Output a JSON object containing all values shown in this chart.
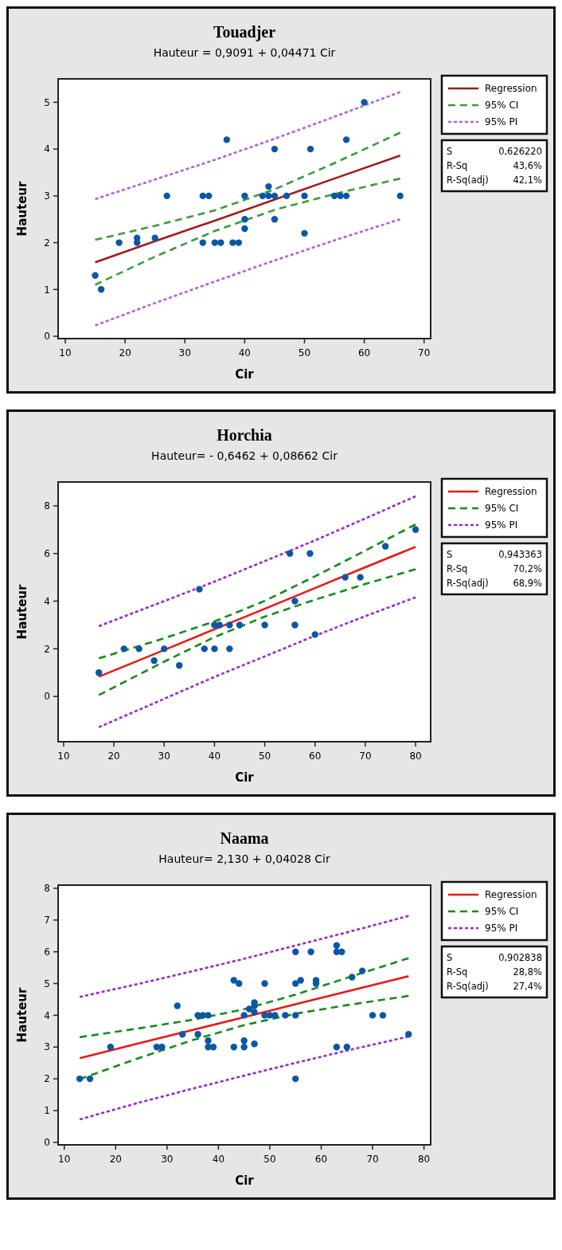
{
  "chart_data": [
    {
      "type": "scatter",
      "title": "Touadjer",
      "subtitle": "Hauteur = 0,9091 + 0,04471 Cir",
      "xlabel": "Cir",
      "ylabel": "Hauteur",
      "xlim": [
        8.8,
        71.1
      ],
      "ylim": [
        -0.05,
        5.5
      ],
      "xticks": [
        10,
        20,
        30,
        40,
        50,
        60,
        70
      ],
      "yticks": [
        0,
        1,
        2,
        3,
        4,
        5
      ],
      "grid": false,
      "legend": "right",
      "annotations": [
        "S",
        "0,626220",
        "R-Sq",
        "43,6%",
        "R-Sq(adj)",
        "42,1%"
      ],
      "series": [
        {
          "color": "#0b57a4",
          "marker": "circle",
          "x": [
            15,
            16,
            19,
            22,
            22,
            25,
            27,
            33,
            34,
            33,
            35,
            36,
            37,
            38,
            39,
            40,
            40,
            40,
            43,
            44,
            44,
            45,
            45,
            45,
            47,
            50,
            50,
            51,
            55,
            56,
            57,
            57,
            60,
            66
          ],
          "values": [
            1.3,
            1.0,
            2.0,
            2.1,
            2.0,
            2.1,
            3,
            3,
            3,
            2,
            2,
            2,
            4.2,
            2,
            2,
            3,
            2.5,
            2.3,
            3,
            3.2,
            3,
            3,
            4,
            2.5,
            3,
            3,
            2.2,
            4,
            3,
            3,
            3,
            4.2,
            5,
            3
          ]
        },
        {
          "type": "line",
          "name": "Regression",
          "color": "#a01c1c",
          "line_style": "solid",
          "x": [
            15,
            25,
            35,
            45,
            55,
            66
          ],
          "values": [
            1.58,
            2.03,
            2.47,
            2.92,
            3.37,
            3.86
          ]
        },
        {
          "type": "line",
          "name": "95% CI",
          "color": "#3c9a3c",
          "line_style": "dashed",
          "x": [
            15,
            25,
            35,
            45,
            55,
            66
          ],
          "values": [
            2.06,
            2.36,
            2.69,
            3.14,
            3.7,
            4.35
          ]
        },
        {
          "type": "line",
          "color": "#3c9a3c",
          "line_style": "dashed",
          "x": [
            15,
            25,
            35,
            45,
            55,
            66
          ],
          "values": [
            1.1,
            1.7,
            2.25,
            2.7,
            3.04,
            3.37
          ]
        },
        {
          "type": "line",
          "name": "95% PI",
          "color": "#b060d8",
          "line_style": "dotted",
          "x": [
            15,
            25,
            35,
            45,
            55,
            66
          ],
          "values": [
            2.93,
            3.35,
            3.77,
            4.22,
            4.69,
            5.22
          ]
        },
        {
          "type": "line",
          "color": "#b060d8",
          "line_style": "dotted",
          "x": [
            15,
            25,
            35,
            45,
            55,
            66
          ],
          "values": [
            0.23,
            0.71,
            1.17,
            1.62,
            2.05,
            2.5
          ]
        }
      ]
    },
    {
      "type": "scatter",
      "title": "Horchia",
      "subtitle": "Hauteur= - 0,6462 + 0,08662 Cir",
      "xlabel": "Cir",
      "ylabel": "Hauteur",
      "xlim": [
        8.9,
        83
      ],
      "ylim": [
        -1.9,
        9
      ],
      "xticks": [
        10,
        20,
        30,
        40,
        50,
        60,
        70,
        80
      ],
      "yticks": [
        0,
        2,
        4,
        6,
        8
      ],
      "grid": false,
      "legend": "right",
      "annotations": [
        "S",
        "0,943363",
        "R-Sq",
        "70,2%",
        "R-Sq(adj)",
        "68,9%"
      ],
      "series": [
        {
          "color": "#0b57a4",
          "marker": "circle",
          "x": [
            17,
            22,
            25,
            28,
            30,
            33,
            37,
            38,
            40,
            41,
            40,
            43,
            43,
            45,
            50,
            55,
            56,
            56,
            59,
            60,
            66,
            69,
            74,
            80
          ],
          "values": [
            1,
            2,
            2,
            1.5,
            2,
            1.3,
            4.5,
            2,
            3,
            3,
            2,
            3,
            2,
            3,
            3,
            6,
            4,
            3,
            6,
            2.6,
            5,
            5,
            6.3,
            7
          ]
        },
        {
          "type": "line",
          "name": "Regression",
          "color": "#e41a1a",
          "line_style": "solid",
          "x": [
            17,
            30,
            40,
            50,
            60,
            70,
            80
          ],
          "values": [
            0.83,
            1.95,
            2.82,
            3.68,
            4.55,
            5.42,
            6.28
          ]
        },
        {
          "type": "line",
          "name": "95% CI",
          "color": "#188a18",
          "line_style": "dashed",
          "x": [
            17,
            30,
            40,
            50,
            60,
            70,
            80
          ],
          "values": [
            1.6,
            2.44,
            3.15,
            4.01,
            5.04,
            6.12,
            7.22
          ]
        },
        {
          "type": "line",
          "color": "#188a18",
          "line_style": "dashed",
          "x": [
            17,
            30,
            40,
            50,
            60,
            70,
            80
          ],
          "values": [
            0.06,
            1.46,
            2.49,
            3.35,
            4.06,
            4.72,
            5.34
          ]
        },
        {
          "type": "line",
          "name": "95% PI",
          "color": "#9a28c8",
          "line_style": "dotted",
          "x": [
            17,
            30,
            40,
            50,
            60,
            70,
            80
          ],
          "values": [
            2.95,
            4.0,
            4.82,
            5.68,
            6.55,
            7.47,
            8.4
          ]
        },
        {
          "type": "line",
          "color": "#9a28c8",
          "line_style": "dotted",
          "x": [
            17,
            30,
            40,
            50,
            60,
            70,
            80
          ],
          "values": [
            -1.29,
            -0.1,
            0.82,
            1.68,
            2.55,
            3.37,
            4.16
          ]
        }
      ]
    },
    {
      "type": "scatter",
      "title": "Naama",
      "subtitle": "Hauteur= 2,130 + 0,04028 Cir",
      "xlabel": "Cir",
      "ylabel": "Hauteur",
      "xlim": [
        8.8,
        81.3
      ],
      "ylim": [
        -0.08,
        8.1
      ],
      "xticks": [
        10,
        20,
        30,
        40,
        50,
        60,
        70,
        80
      ],
      "yticks": [
        0,
        1,
        2,
        3,
        4,
        5,
        6,
        7,
        8
      ],
      "grid": false,
      "legend": "right",
      "annotations": [
        "S",
        "0,902838",
        "R-Sq",
        "28,8%",
        "R-Sq(adj)",
        "27,4%"
      ],
      "series": [
        {
          "color": "#0b57a4",
          "marker": "circle",
          "x": [
            13,
            15,
            19,
            28,
            29,
            32,
            33,
            36,
            36,
            37,
            38,
            38,
            38,
            39,
            43,
            43,
            44,
            45,
            45,
            45,
            46,
            47,
            47,
            47,
            47,
            49,
            49,
            50,
            51,
            53,
            55,
            55,
            55,
            55,
            56,
            58,
            59,
            59,
            63,
            63,
            63,
            64,
            65,
            66,
            68,
            70,
            72,
            77
          ],
          "values": [
            2,
            2,
            3,
            3,
            3,
            4.3,
            3.4,
            4,
            3.4,
            4,
            4,
            3.2,
            3,
            3,
            5.1,
            3,
            5,
            4,
            3.2,
            3,
            4.2,
            4.4,
            4.3,
            4.1,
            3.1,
            5,
            4,
            4,
            4,
            4,
            6,
            5,
            4,
            2,
            5.1,
            6,
            5.1,
            5,
            6.2,
            6,
            3,
            6,
            3,
            5.2,
            5.4,
            4,
            4,
            3.4
          ]
        },
        {
          "type": "line",
          "name": "Regression",
          "color": "#e41a1a",
          "line_style": "solid",
          "x": [
            13,
            25,
            35,
            45,
            55,
            65,
            77
          ],
          "values": [
            2.65,
            3.14,
            3.54,
            3.94,
            4.35,
            4.75,
            5.23
          ]
        },
        {
          "type": "line",
          "name": "95% CI",
          "color": "#188a18",
          "line_style": "dashed",
          "x": [
            13,
            25,
            35,
            45,
            55,
            65,
            77
          ],
          "values": [
            3.31,
            3.6,
            3.86,
            4.19,
            4.65,
            5.18,
            5.8
          ]
        },
        {
          "type": "line",
          "color": "#188a18",
          "line_style": "dashed",
          "x": [
            13,
            25,
            35,
            45,
            55,
            65,
            77
          ],
          "values": [
            1.99,
            2.68,
            3.22,
            3.69,
            4.05,
            4.32,
            4.61
          ]
        },
        {
          "type": "line",
          "name": "95% PI",
          "color": "#9a28c8",
          "line_style": "dotted",
          "x": [
            13,
            25,
            35,
            45,
            55,
            65,
            77
          ],
          "values": [
            4.58,
            5.01,
            5.39,
            5.78,
            6.2,
            6.61,
            7.13
          ]
        },
        {
          "type": "line",
          "color": "#9a28c8",
          "line_style": "dotted",
          "x": [
            13,
            25,
            35,
            45,
            55,
            65,
            77
          ],
          "values": [
            0.72,
            1.27,
            1.69,
            2.1,
            2.5,
            2.89,
            3.33
          ]
        }
      ]
    }
  ]
}
